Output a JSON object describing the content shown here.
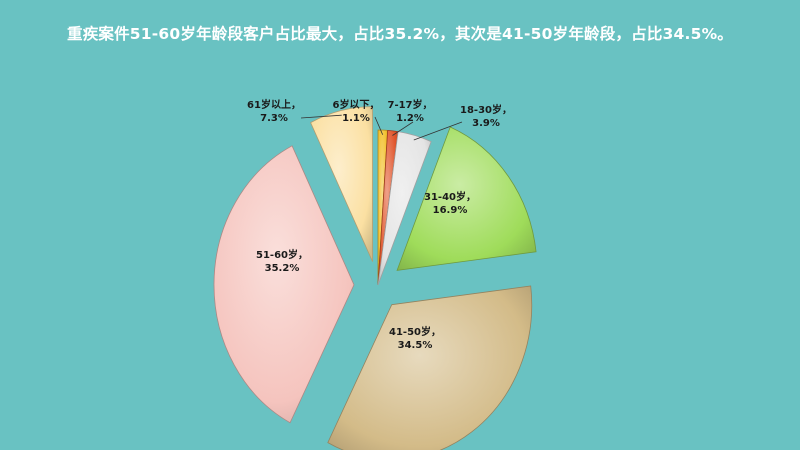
{
  "headline": "重疾案件51-60岁年龄段客户占比最大，占比35.2%，其次是41-50岁年龄段，占比34.5%。",
  "chart_data": {
    "type": "pie",
    "slices": [
      {
        "name": "6岁以下",
        "value": 1.1,
        "label": "6岁以下，",
        "value_label": "1.1%",
        "color": "#f2c12e",
        "explode": 0
      },
      {
        "name": "7-17岁",
        "value": 1.2,
        "label": "7-17岁，",
        "value_label": "1.2%",
        "color": "#e0542a",
        "explode": 0
      },
      {
        "name": "18-30岁",
        "value": 3.9,
        "label": "18-30岁，",
        "value_label": "3.9%",
        "color": "#e4e4e4",
        "explode": 0
      },
      {
        "name": "31-40岁",
        "value": 16.9,
        "label": "31-40岁，",
        "value_label": "16.9%",
        "color": "#9fdc5a",
        "explode": 1
      },
      {
        "name": "41-50岁",
        "value": 34.5,
        "label": "41-50岁，",
        "value_label": "34.5%",
        "color": "#d3bb88",
        "explode": 1
      },
      {
        "name": "51-60岁",
        "value": 35.2,
        "label": "51-60岁，",
        "value_label": "35.2%",
        "color": "#f5c4be",
        "explode": 1
      },
      {
        "name": "61岁以上",
        "value": 7.3,
        "label": "61岁以上，",
        "value_label": "7.3%",
        "color": "#fbe0a2",
        "explode": 1
      }
    ]
  }
}
